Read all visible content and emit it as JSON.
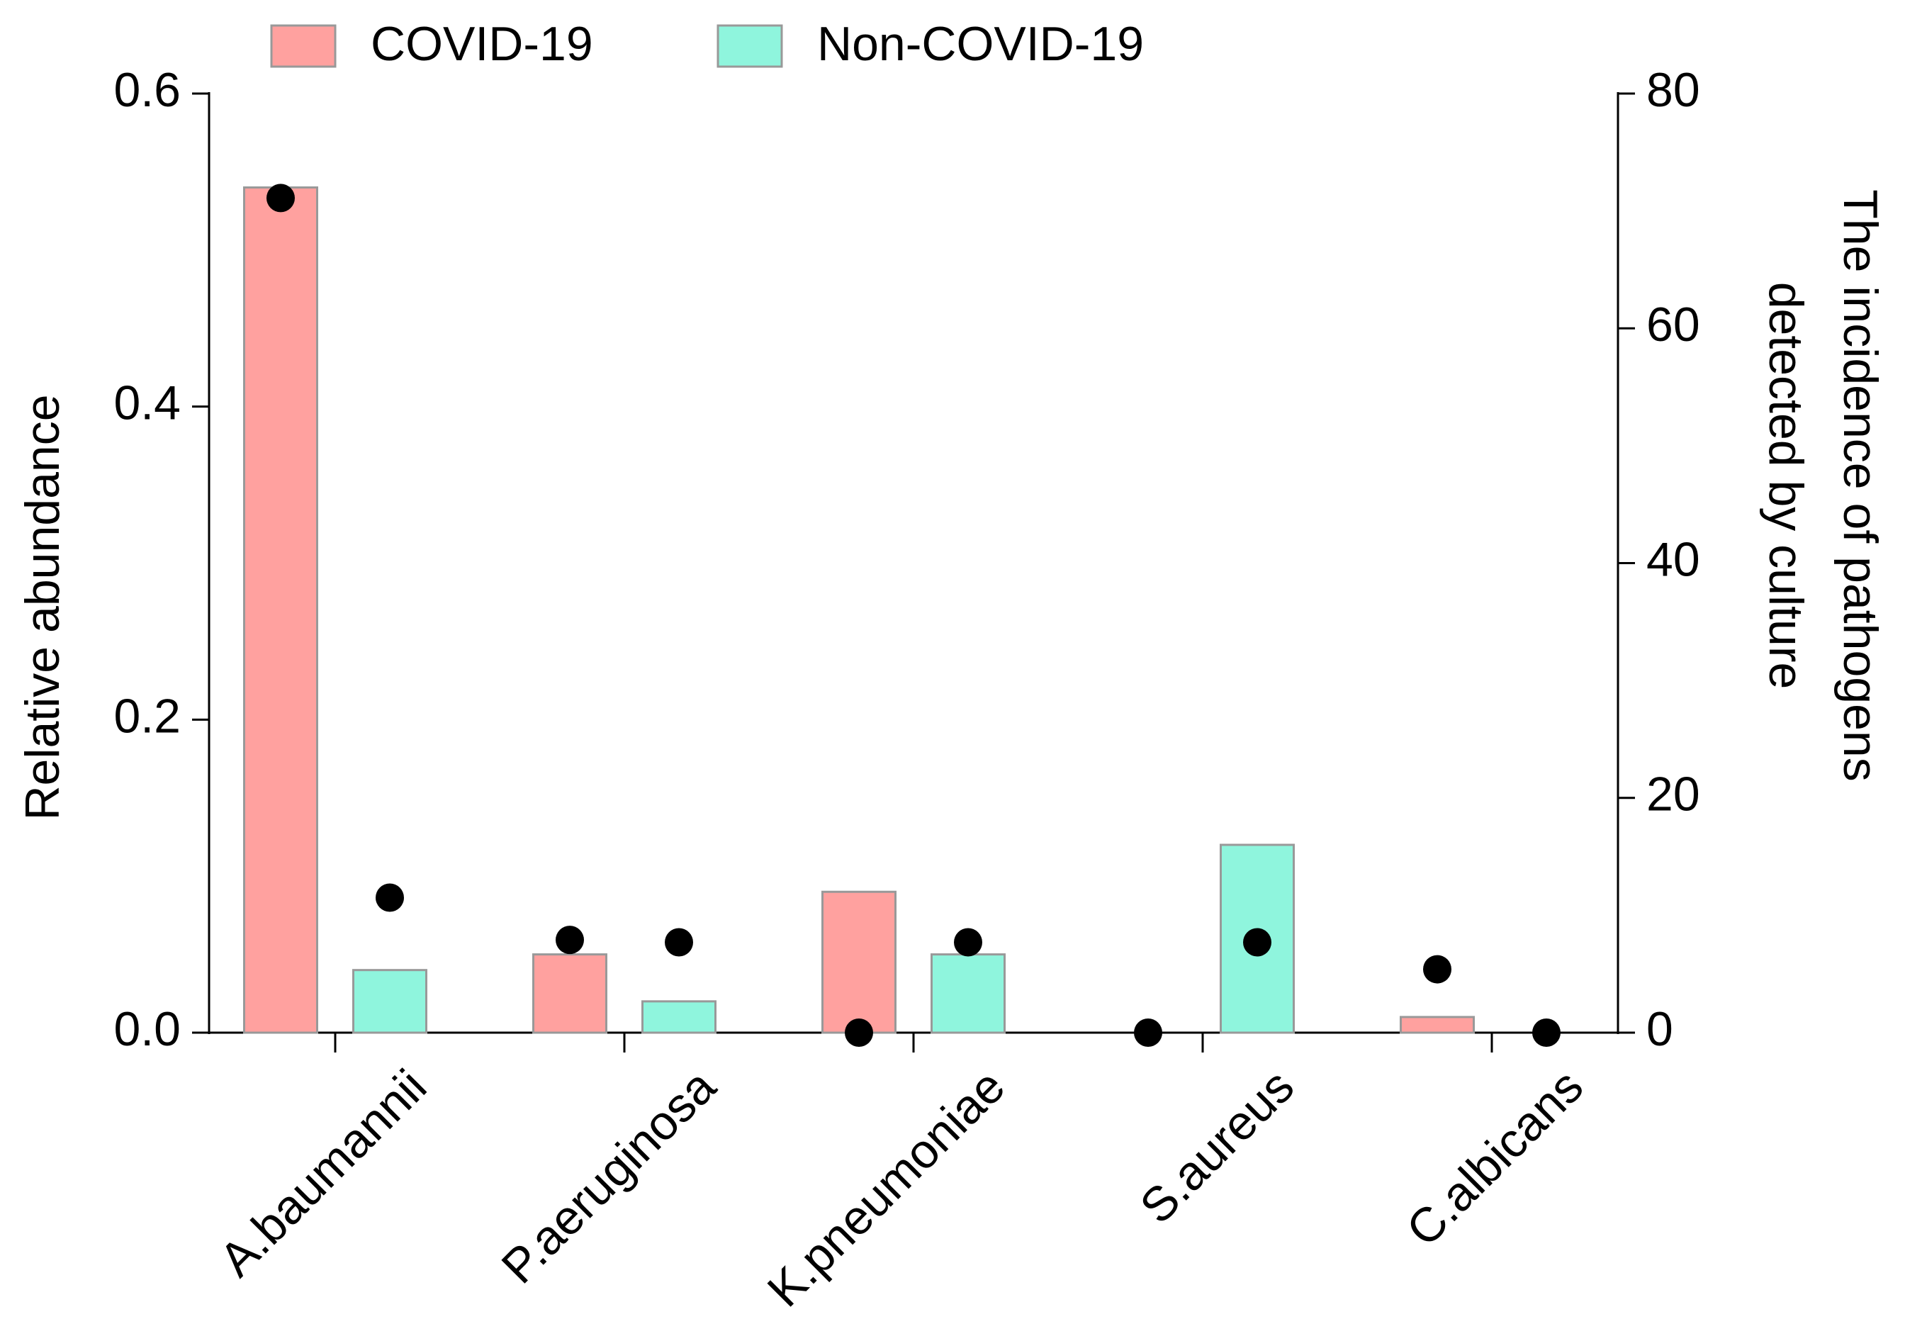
{
  "chart_data": {
    "type": "bar",
    "ylabel": "Relative abundance",
    "y2label": [
      "The incidence of pathogens",
      "detected by culture"
    ],
    "categories": [
      "A.baumannii",
      "P.aeruginosa",
      "K.pneumoniae",
      "S.aureus",
      "C.albicans"
    ],
    "series": [
      {
        "name": "COVID-19",
        "color": "#ffa19f",
        "values": [
          0.54,
          0.05,
          0.09,
          0,
          0.01
        ]
      },
      {
        "name": "Non-COVID-19",
        "color": "#8ff5dd",
        "values": [
          0.04,
          0.02,
          0.05,
          0.12,
          0
        ]
      },
      {
        "type": "scatter",
        "axis": "y2",
        "color": "#000000",
        "values": [
          71.1,
          7.9,
          0,
          0,
          5.4
        ]
      },
      {
        "type": "scatter",
        "axis": "y2",
        "color": "#000000",
        "values": [
          11.5,
          7.7,
          7.7,
          7.7,
          0
        ]
      }
    ],
    "ylim": [
      0,
      0.6
    ],
    "yticks": [
      {
        "value": 0,
        "label": "0.0"
      },
      0.2,
      0.4,
      0.6
    ],
    "y2lim": [
      0,
      80
    ],
    "y2ticks": [
      0,
      20,
      40,
      60,
      80
    ],
    "legend": "top"
  }
}
